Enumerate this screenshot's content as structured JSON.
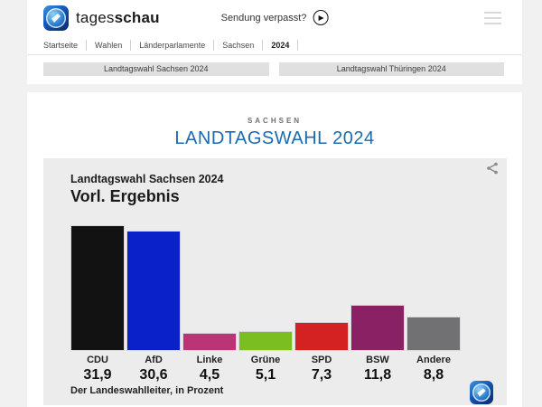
{
  "header": {
    "brand": {
      "light": "tages",
      "bold": "schau"
    },
    "sendung_verpasst_label": "Sendung verpasst?"
  },
  "icons": {
    "logo": "tagesschau-globe-icon",
    "play": "play-circle-icon",
    "menu": "hamburger-menu-icon",
    "share": "share-icon"
  },
  "breadcrumb": {
    "items": [
      "Startseite",
      "Wahlen",
      "Länderparlamente",
      "Sachsen",
      "2024"
    ]
  },
  "quicklinks": [
    {
      "label": "Landtagswahl Sachsen 2024"
    },
    {
      "label": "Landtagswahl Thüringen 2024"
    }
  ],
  "main": {
    "kicker": "SACHSEN",
    "title": "LANDTAGSWAHL 2024",
    "title_color": "#1c6ab3"
  },
  "chart_data": {
    "type": "bar",
    "title": "Landtagswahl Sachsen 2024",
    "subtitle": "Vorl. Ergebnis",
    "categories": [
      "CDU",
      "AfD",
      "Linke",
      "Grüne",
      "SPD",
      "BSW",
      "Andere"
    ],
    "values": [
      31.9,
      30.6,
      4.5,
      5.1,
      7.3,
      11.8,
      8.8
    ],
    "value_labels": [
      "31,9",
      "30,6",
      "4,5",
      "5,1",
      "7,3",
      "11,8",
      "8,8"
    ],
    "colors": [
      "#121212",
      "#0a20c8",
      "#bc3376",
      "#7bbe1f",
      "#d42121",
      "#8a2164",
      "#717173"
    ],
    "unit": "Prozent",
    "source": "Der Landeswahlleiter, in Prozent",
    "ylim": [
      0,
      32.2
    ],
    "grid": false,
    "legend": false
  }
}
